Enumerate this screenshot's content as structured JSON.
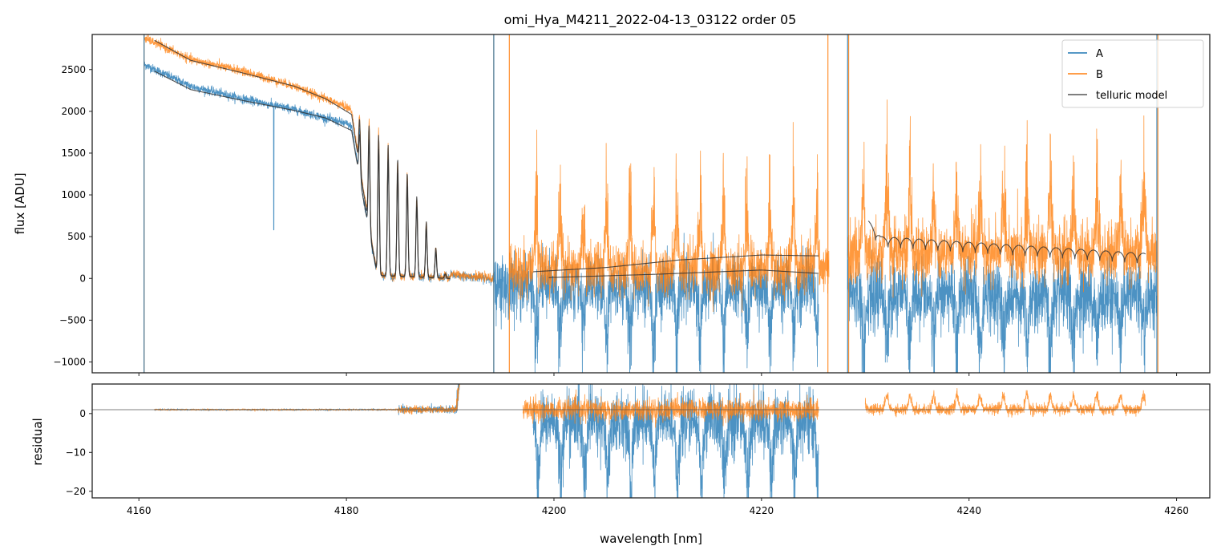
{
  "chart_data": [
    {
      "type": "line",
      "panel": "top",
      "title": "omi_Hya_M4211_2022-04-13_03122  order 05",
      "xlabel": "",
      "ylabel": "flux [ADU]",
      "xlim": [
        4155.5,
        4263.2
      ],
      "ylim": [
        -1130,
        2920
      ],
      "yticks": [
        -1000,
        -500,
        0,
        500,
        1000,
        1500,
        2000,
        2500
      ],
      "ytick_labels": [
        "−1000",
        "−500",
        "0",
        "500",
        "1000",
        "1500",
        "2000",
        "2500"
      ],
      "xticks": [
        4160,
        4180,
        4200,
        4220,
        4240,
        4260
      ],
      "legend": {
        "position": "top-right",
        "entries": [
          {
            "label": "A",
            "color": "#1f77b4"
          },
          {
            "label": "B",
            "color": "#ff7f0e"
          },
          {
            "label": "telluric model",
            "color": "#555555"
          }
        ]
      },
      "series": [
        {
          "name": "A",
          "color": "#1f77b4",
          "segments": [
            {
              "x_range": [
                4160.5,
                4194.2
              ],
              "continuum": [
                [
                  4160.5,
                  2560
                ],
                [
                  4165,
                  2300
                ],
                [
                  4170,
                  2150
                ],
                [
                  4175,
                  2020
                ],
                [
                  4180,
                  1850
                ],
                [
                  4182,
                  1700
                ],
                [
                  4184,
                  1450
                ],
                [
                  4186,
                  1100
                ],
                [
                  4188,
                  500
                ],
                [
                  4189.5,
                  50
                ],
                [
                  4194.2,
                  -10
                ]
              ]
            },
            {
              "x_range": [
                4194.2,
                4225.5
              ],
              "mean": -100,
              "noise": 300,
              "dips": "deep periodic"
            },
            {
              "x_range": [
                4228.3,
                4258.1
              ],
              "mean": -200,
              "noise": 350,
              "dips": "deep periodic"
            }
          ]
        },
        {
          "name": "B",
          "color": "#ff7f0e",
          "segments": [
            {
              "x_range": [
                4160.5,
                4194.2
              ],
              "continuum": [
                [
                  4160.5,
                  2880
                ],
                [
                  4165,
                  2620
                ],
                [
                  4170,
                  2480
                ],
                [
                  4175,
                  2300
                ],
                [
                  4180,
                  2050
                ],
                [
                  4182,
                  1900
                ],
                [
                  4184,
                  1620
                ],
                [
                  4186,
                  1200
                ],
                [
                  4188,
                  550
                ],
                [
                  4189.5,
                  60
                ],
                [
                  4194.2,
                  0
                ]
              ]
            },
            {
              "x_range": [
                4195.7,
                4226.5
              ],
              "mean": 100,
              "noise": 250,
              "peaks": "periodic emission to ~1800"
            },
            {
              "x_range": [
                4228.3,
                4258.1
              ],
              "mean": 300,
              "noise": 300,
              "peaks": "periodic emission to ~1800"
            }
          ]
        },
        {
          "name": "telluric model",
          "color": "#333333",
          "segments": [
            {
              "label": "B-fit",
              "x": [
                4161.5,
                4165,
                4170,
                4175,
                4178,
                4180,
                4190
              ],
              "y": [
                2850,
                2610,
                2460,
                2300,
                2150,
                2000,
                0
              ]
            },
            {
              "label": "A-fit",
              "x": [
                4161.5,
                4165,
                4170,
                4175,
                4178,
                4180,
                4190
              ],
              "y": [
                2480,
                2260,
                2130,
                2010,
                1920,
                1800,
                0
              ]
            },
            {
              "label": "mid-upper",
              "x": [
                4198,
                4205,
                4212,
                4220,
                4225.5
              ],
              "y": [
                80,
                130,
                220,
                280,
                270
              ]
            },
            {
              "label": "mid-lower",
              "x": [
                4199.5,
                4210,
                4220,
                4225.5
              ],
              "y": [
                10,
                50,
                100,
                60
              ]
            },
            {
              "label": "right",
              "x": [
                4230.3,
                4231.5,
                4257
              ],
              "y": [
                690,
                500,
                300
              ]
            }
          ]
        }
      ]
    },
    {
      "type": "line",
      "panel": "bottom",
      "xlabel": "wavelength [nm]",
      "ylabel": "residual",
      "xlim": [
        4155.5,
        4263.2
      ],
      "ylim": [
        -21.7,
        7.6
      ],
      "yticks": [
        -20,
        -10,
        0
      ],
      "ytick_labels": [
        "−20",
        "−10",
        "0"
      ],
      "xticks": [
        4160,
        4180,
        4200,
        4220,
        4240,
        4260
      ],
      "xtick_labels": [
        "4160",
        "4180",
        "4200",
        "4220",
        "4240",
        "4260"
      ],
      "hline": 1,
      "series": [
        {
          "name": "A",
          "color": "#1f77b4",
          "segments": [
            {
              "x_range": [
                4161.5,
                4191.2
              ],
              "level": 1,
              "noise": 0.3
            },
            {
              "x_range": [
                4198,
                4225.5
              ],
              "level": -2,
              "noise": 8
            }
          ]
        },
        {
          "name": "B",
          "color": "#ff7f0e",
          "segments": [
            {
              "x_range": [
                4161.5,
                4191.2
              ],
              "level": 1,
              "noise": 0.3
            },
            {
              "x_range": [
                4197,
                4225.5
              ],
              "level": 1,
              "noise": 3
            },
            {
              "x_range": [
                4230,
                4257
              ],
              "level": 1,
              "noise": 1.5
            }
          ]
        }
      ]
    }
  ]
}
